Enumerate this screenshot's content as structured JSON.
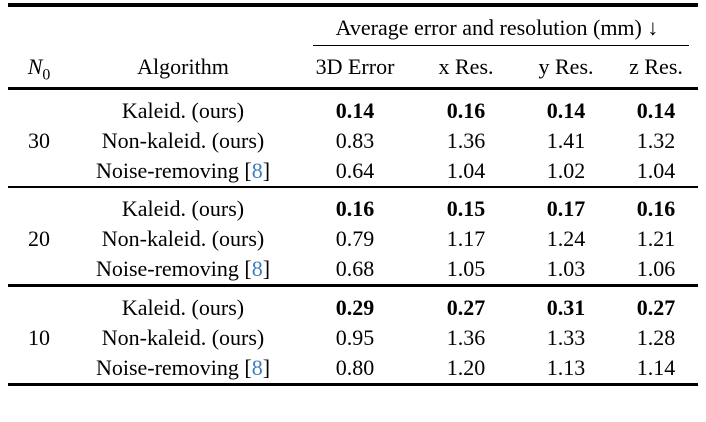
{
  "table": {
    "span_header": "Average error and resolution (mm) ↓",
    "headers": {
      "n0_base": "N",
      "n0_sub": "0",
      "algorithm": "Algorithm",
      "metrics": [
        "3D Error",
        "x Res.",
        "y Res.",
        "z Res."
      ]
    },
    "citation_brackets": {
      "open": "[",
      "close": "]"
    },
    "colors": {
      "text": "#000000",
      "rule": "#000000",
      "citation_link": "#3d7dbf",
      "background": "#ffffff"
    },
    "groups": [
      {
        "n0": "30",
        "rows": [
          {
            "algorithm": "Kaleid. (ours)",
            "bold": true,
            "values": [
              "0.14",
              "0.16",
              "0.14",
              "0.14"
            ]
          },
          {
            "algorithm": "Non-kaleid. (ours)",
            "bold": false,
            "values": [
              "0.83",
              "1.36",
              "1.41",
              "1.32"
            ]
          },
          {
            "algorithm": "Noise-removing",
            "citation": "8",
            "bold": false,
            "values": [
              "0.64",
              "1.04",
              "1.02",
              "1.04"
            ]
          }
        ]
      },
      {
        "n0": "20",
        "rows": [
          {
            "algorithm": "Kaleid. (ours)",
            "bold": true,
            "values": [
              "0.16",
              "0.15",
              "0.17",
              "0.16"
            ]
          },
          {
            "algorithm": "Non-kaleid. (ours)",
            "bold": false,
            "values": [
              "0.79",
              "1.17",
              "1.24",
              "1.21"
            ]
          },
          {
            "algorithm": "Noise-removing",
            "citation": "8",
            "bold": false,
            "values": [
              "0.68",
              "1.05",
              "1.03",
              "1.06"
            ]
          }
        ]
      },
      {
        "n0": "10",
        "rows": [
          {
            "algorithm": "Kaleid. (ours)",
            "bold": true,
            "values": [
              "0.29",
              "0.27",
              "0.31",
              "0.27"
            ]
          },
          {
            "algorithm": "Non-kaleid. (ours)",
            "bold": false,
            "values": [
              "0.95",
              "1.36",
              "1.33",
              "1.28"
            ]
          },
          {
            "algorithm": "Noise-removing",
            "citation": "8",
            "bold": false,
            "values": [
              "0.80",
              "1.20",
              "1.13",
              "1.14"
            ]
          }
        ]
      }
    ]
  }
}
